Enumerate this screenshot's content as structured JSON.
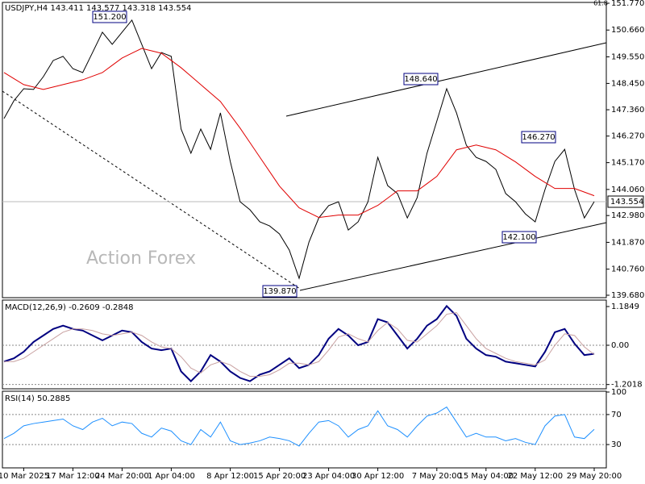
{
  "chart_data": [
    {
      "type": "line",
      "title": "USDJPY,H4  143.411 143.577 143.318 143.554",
      "watermark": "Action Forex",
      "ylim": [
        139.68,
        151.77
      ],
      "yticks": [
        {
          "value": 151.77,
          "label": "151.770"
        },
        {
          "value": 150.66,
          "label": "150.660"
        },
        {
          "value": 149.55,
          "label": "149.550"
        },
        {
          "value": 148.45,
          "label": "148.450"
        },
        {
          "value": 147.36,
          "label": "147.360"
        },
        {
          "value": 146.27,
          "label": "146.270"
        },
        {
          "value": 145.17,
          "label": "145.170"
        },
        {
          "value": 144.06,
          "label": "144.060"
        },
        {
          "value": 142.98,
          "label": "142.980"
        },
        {
          "value": 141.87,
          "label": "141.870"
        },
        {
          "value": 140.76,
          "label": "140.760"
        },
        {
          "value": 139.68,
          "label": "139.680"
        }
      ],
      "last_price": {
        "value": 143.554,
        "label": "143.554"
      },
      "annotations": [
        "151.200",
        "148.640",
        "146.270",
        "142.100",
        "139.870",
        "61.8"
      ],
      "series": [
        {
          "color": "#000000",
          "values": [
            147.0,
            147.73,
            148.23,
            148.2,
            148.73,
            149.4,
            149.57,
            149.06,
            148.9,
            149.73,
            150.57,
            150.07,
            150.57,
            151.07,
            150.07,
            149.06,
            149.73,
            149.57,
            146.56,
            145.56,
            146.56,
            145.72,
            147.23,
            145.22,
            143.55,
            143.22,
            142.72,
            142.55,
            142.22,
            141.55,
            140.38,
            141.88,
            142.88,
            143.39,
            143.55,
            142.38,
            142.72,
            143.55,
            145.39,
            144.22,
            143.89,
            142.88,
            143.72,
            145.56,
            146.89,
            148.23,
            147.23,
            145.89,
            145.39,
            145.22,
            144.89,
            143.89,
            143.55,
            143.05,
            142.72,
            144.06,
            145.22,
            145.72,
            144.06,
            142.88,
            143.554
          ]
        },
        {
          "color": "#e00000",
          "values": [
            148.9,
            148.65,
            148.4,
            148.3,
            148.2,
            148.3,
            148.4,
            148.5,
            148.6,
            148.75,
            148.9,
            149.2,
            149.5,
            149.7,
            149.9,
            149.8,
            149.7,
            149.4,
            149.1,
            148.75,
            148.4,
            148.05,
            147.7,
            147.15,
            146.6,
            146.0,
            145.4,
            144.8,
            144.2,
            143.75,
            143.3,
            143.1,
            142.9,
            142.95,
            143.0,
            143.0,
            143.0,
            143.2,
            143.4,
            143.7,
            144.0,
            144.0,
            144.0,
            144.3,
            144.6,
            145.15,
            145.7,
            145.8,
            145.9,
            145.8,
            145.7,
            145.45,
            145.2,
            144.9,
            144.6,
            144.35,
            144.1,
            144.1,
            144.1,
            143.95,
            143.8
          ]
        }
      ]
    },
    {
      "type": "line",
      "title": "MACD(12,26,9) -0.2609 -0.2848",
      "ylim": [
        -1.333,
        1.358
      ],
      "yticks": [
        1.1849,
        {
          "value": 0,
          "label": "0.00"
        },
        -1.2018
      ],
      "series": [
        {
          "color": "#000080",
          "width": 2,
          "values": [
            -0.5,
            -0.4,
            -0.2,
            0.1,
            0.3,
            0.5,
            0.6,
            0.5,
            0.45,
            0.3,
            0.15,
            0.3,
            0.45,
            0.4,
            0.1,
            -0.1,
            -0.15,
            -0.1,
            -0.8,
            -1.1,
            -0.8,
            -0.3,
            -0.5,
            -0.8,
            -1.0,
            -1.1,
            -0.9,
            -0.8,
            -0.6,
            -0.4,
            -0.7,
            -0.6,
            -0.3,
            0.2,
            0.5,
            0.3,
            0.0,
            0.1,
            0.8,
            0.7,
            0.3,
            -0.1,
            0.2,
            0.6,
            0.8,
            1.2,
            0.9,
            0.2,
            -0.1,
            -0.3,
            -0.35,
            -0.5,
            -0.55,
            -0.6,
            -0.65,
            -0.2,
            0.4,
            0.5,
            0.05,
            -0.3,
            -0.2609
          ]
        },
        {
          "color": "#c8a0a0",
          "width": 1,
          "values": [
            -0.5,
            -0.5,
            -0.4,
            -0.2,
            0.0,
            0.2,
            0.4,
            0.5,
            0.5,
            0.45,
            0.35,
            0.3,
            0.35,
            0.4,
            0.3,
            0.1,
            -0.05,
            -0.1,
            -0.35,
            -0.7,
            -0.85,
            -0.6,
            -0.5,
            -0.6,
            -0.8,
            -0.95,
            -0.95,
            -0.9,
            -0.75,
            -0.55,
            -0.55,
            -0.6,
            -0.5,
            -0.15,
            0.25,
            0.35,
            0.2,
            0.1,
            0.45,
            0.7,
            0.5,
            0.15,
            0.1,
            0.35,
            0.6,
            0.95,
            1.0,
            0.6,
            0.2,
            -0.1,
            -0.25,
            -0.4,
            -0.5,
            -0.55,
            -0.6,
            -0.45,
            0.0,
            0.35,
            0.3,
            -0.05,
            -0.2848
          ]
        }
      ]
    },
    {
      "type": "line",
      "title": "RSI(14) 50.2885",
      "ylim": [
        0,
        100
      ],
      "yticks": [
        100,
        70,
        30
      ],
      "categories": [
        null,
        null,
        "10 Mar 2025",
        null,
        null,
        null,
        null,
        "17 Mar 12:00",
        null,
        null,
        null,
        null,
        "24 Mar 20:00",
        null,
        null,
        null,
        null,
        "1 Apr 04:00",
        null,
        null,
        null,
        null,
        null,
        "8 Apr 12:00",
        null,
        null,
        null,
        null,
        "15 Apr 20:00",
        null,
        null,
        null,
        null,
        "23 Apr 04:00",
        null,
        null,
        null,
        null,
        "30 Apr 12:00",
        null,
        null,
        null,
        null,
        null,
        "7 May 20:00",
        null,
        null,
        null,
        null,
        "15 May 04:00",
        null,
        null,
        null,
        null,
        "22 May 12:00",
        null,
        null,
        null,
        null,
        null,
        "29 May 20:00"
      ],
      "series": [
        {
          "color": "#1e90ff",
          "width": 1,
          "values": [
            38,
            45,
            55,
            58,
            60,
            62,
            64,
            55,
            50,
            60,
            65,
            55,
            60,
            58,
            45,
            40,
            52,
            48,
            35,
            30,
            50,
            40,
            60,
            35,
            30,
            32,
            35,
            40,
            38,
            35,
            28,
            45,
            60,
            62,
            55,
            40,
            50,
            55,
            75,
            55,
            50,
            40,
            55,
            68,
            72,
            80,
            60,
            40,
            45,
            40,
            40,
            35,
            38,
            33,
            30,
            55,
            68,
            70,
            40,
            38,
            50.2885
          ]
        }
      ]
    }
  ]
}
